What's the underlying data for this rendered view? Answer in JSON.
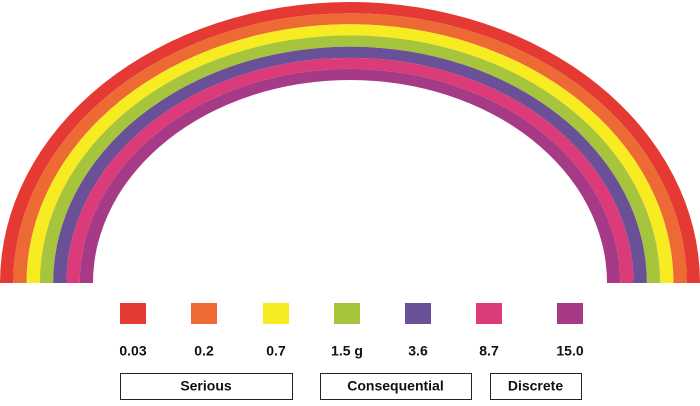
{
  "bands": [
    {
      "color": "#e53a33",
      "label": "0.03"
    },
    {
      "color": "#ee6a35",
      "label": "0.2"
    },
    {
      "color": "#f7ec22",
      "label": "0.7"
    },
    {
      "color": "#a6c43c",
      "label": "1.5 g"
    },
    {
      "color": "#6a5096",
      "label": "3.6"
    },
    {
      "color": "#db3b78",
      "label": "8.7"
    },
    {
      "color": "#a63a87",
      "label": "15.0"
    }
  ],
  "groups": [
    {
      "label": "Serious"
    },
    {
      "label": "Consequential"
    },
    {
      "label": "Discrete"
    }
  ]
}
